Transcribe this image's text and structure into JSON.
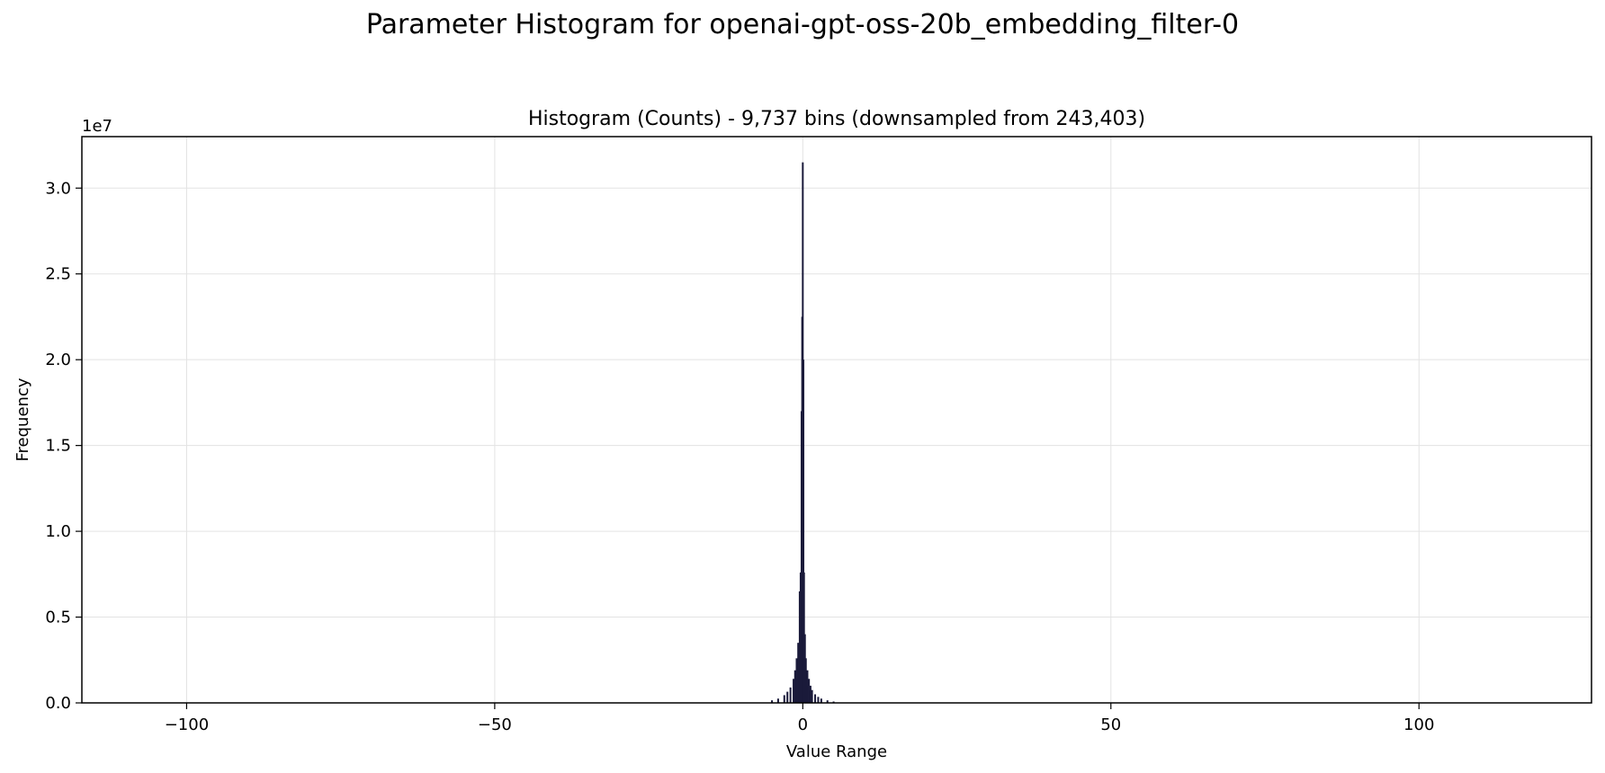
{
  "figure": {
    "suptitle": "Parameter Histogram for openai-gpt-oss-20b_embedding_filter-0"
  },
  "chart_data": {
    "type": "bar",
    "title": "Histogram (Counts) - 9,737 bins (downsampled from 243,403)",
    "xlabel": "Value Range",
    "ylabel": "Frequency",
    "y_offset_label": "1e7",
    "xlim": [
      -117,
      128
    ],
    "ylim": [
      0,
      33000000
    ],
    "x_ticks": [
      -100,
      -50,
      0,
      50,
      100
    ],
    "x_tick_labels": [
      "−100",
      "−50",
      "0",
      "50",
      "100"
    ],
    "y_ticks": [
      0,
      5000000,
      10000000,
      15000000,
      20000000,
      25000000,
      30000000
    ],
    "y_tick_labels": [
      "0.0",
      "0.5",
      "1.0",
      "1.5",
      "2.0",
      "2.5",
      "3.0"
    ],
    "grid": true,
    "bar_color": "#1a1a3a",
    "bins": {
      "x": [
        -5,
        -4,
        -3,
        -2.5,
        -2,
        -1.5,
        -1.25,
        -1,
        -0.75,
        -0.5,
        -0.35,
        -0.2,
        -0.1,
        0,
        0.1,
        0.2,
        0.35,
        0.5,
        0.75,
        1,
        1.25,
        1.5,
        2,
        2.5,
        3,
        4,
        5
      ],
      "counts": [
        150000,
        250000,
        450000,
        650000,
        900000,
        1400000,
        1900000,
        2600000,
        3500000,
        6500000,
        7600000,
        17000000,
        22500000,
        31500000,
        20000000,
        7600000,
        4000000,
        2600000,
        1900000,
        1400000,
        1000000,
        750000,
        500000,
        350000,
        250000,
        150000,
        80000
      ]
    }
  }
}
